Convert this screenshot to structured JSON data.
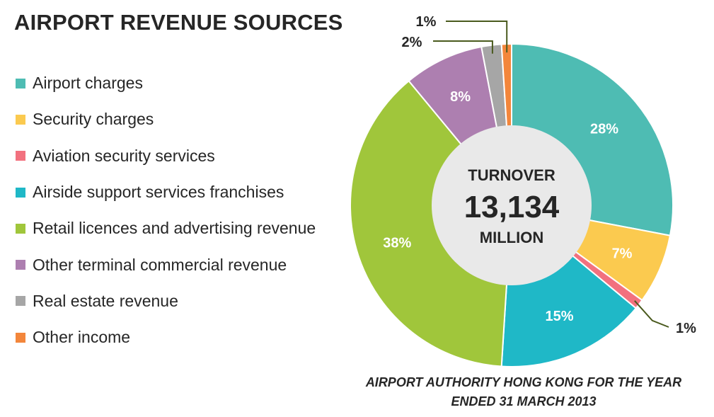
{
  "title": "AIRPORT REVENUE SOURCES",
  "center": {
    "line1": "TURNOVER",
    "value": "13,134",
    "line3": "MILLION"
  },
  "caption": "AIRPORT AUTHORITY HONG KONG FOR THE YEAR ENDED 31 MARCH 2013",
  "chart_data": {
    "type": "pie",
    "variant": "donut",
    "title": "AIRPORT REVENUE SOURCES",
    "center_text": [
      "TURNOVER",
      "13,134",
      "MILLION"
    ],
    "legend_placement": "left",
    "slices": [
      {
        "label": "Airport charges",
        "value": 28,
        "display": "28%",
        "color": "#4ebcb3"
      },
      {
        "label": "Security charges",
        "value": 7,
        "display": "7%",
        "color": "#fbca4f"
      },
      {
        "label": "Aviation security services",
        "value": 1,
        "display": "1%",
        "color": "#f2717f"
      },
      {
        "label": "Airside support services franchises",
        "value": 15,
        "display": "15%",
        "color": "#1fb8c7"
      },
      {
        "label": "Retail licences and advertising revenue",
        "value": 38,
        "display": "38%",
        "color": "#a0c63b"
      },
      {
        "label": "Other terminal commercial revenue",
        "value": 8,
        "display": "8%",
        "color": "#ad7fb0"
      },
      {
        "label": "Real estate revenue",
        "value": 2,
        "display": "2%",
        "color": "#a6a6a6"
      },
      {
        "label": "Other income",
        "value": 1,
        "display": "1%",
        "color": "#f3863b"
      }
    ]
  }
}
